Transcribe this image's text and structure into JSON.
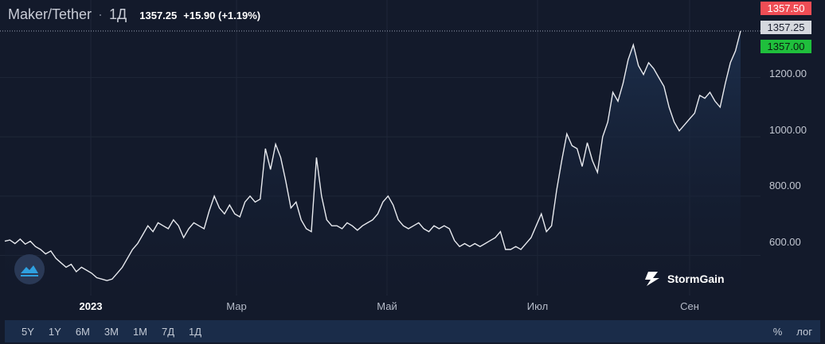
{
  "header": {
    "pair": "Maker/Tether",
    "separator": "·",
    "interval": "1Д",
    "last_price": "1357.25",
    "change": "+15.90 (+1.19%)"
  },
  "price_tags": {
    "ask": "1357.50",
    "last": "1357.25",
    "bid": "1357.00"
  },
  "colors": {
    "background": "#131a2b",
    "line": "#e8eaef",
    "ask": "#ef4d55",
    "bid": "#1fbf3c",
    "toolbar": "#1a2c49"
  },
  "brand": {
    "name": "StormGain",
    "icon": "stormgain-icon"
  },
  "toolbar": {
    "periods": [
      "5Y",
      "1Y",
      "6M",
      "3M",
      "1M",
      "7Д",
      "1Д"
    ],
    "percent": "%",
    "log": "лог"
  },
  "chart_data": {
    "type": "line",
    "y_ticks": [
      "600.00",
      "800.00",
      "1000.00",
      "1200.00"
    ],
    "x_ticks": [
      "2023",
      "Мар",
      "Май",
      "Июл",
      "Сен"
    ],
    "ylim": [
      470,
      1365
    ],
    "grid": true,
    "series": [
      {
        "values": [
          648,
          652,
          640,
          655,
          638,
          648,
          630,
          620,
          605,
          615,
          590,
          575,
          560,
          570,
          545,
          560,
          550,
          540,
          525,
          520,
          515,
          520,
          540,
          560,
          590,
          620,
          640,
          670,
          700,
          680,
          710,
          700,
          690,
          720,
          700,
          660,
          690,
          710,
          700,
          690,
          750,
          800,
          760,
          740,
          770,
          740,
          730,
          780,
          800,
          780,
          790,
          960,
          890,
          975,
          930,
          850,
          760,
          780,
          720,
          690,
          680,
          930,
          800,
          720,
          700,
          700,
          690,
          710,
          700,
          685,
          700,
          710,
          720,
          740,
          780,
          800,
          770,
          720,
          700,
          690,
          700,
          710,
          690,
          680,
          700,
          690,
          700,
          690,
          650,
          630,
          640,
          630,
          640,
          630,
          640,
          650,
          660,
          680,
          620,
          620,
          630,
          620,
          640,
          660,
          700,
          740,
          680,
          700,
          820,
          920,
          1010,
          970,
          960,
          900,
          980,
          920,
          880,
          1000,
          1050,
          1150,
          1120,
          1180,
          1260,
          1310,
          1240,
          1210,
          1250,
          1230,
          1200,
          1170,
          1100,
          1050,
          1020,
          1040,
          1060,
          1080,
          1140,
          1130,
          1150,
          1120,
          1100,
          1180,
          1250,
          1290,
          1357
        ]
      }
    ]
  }
}
